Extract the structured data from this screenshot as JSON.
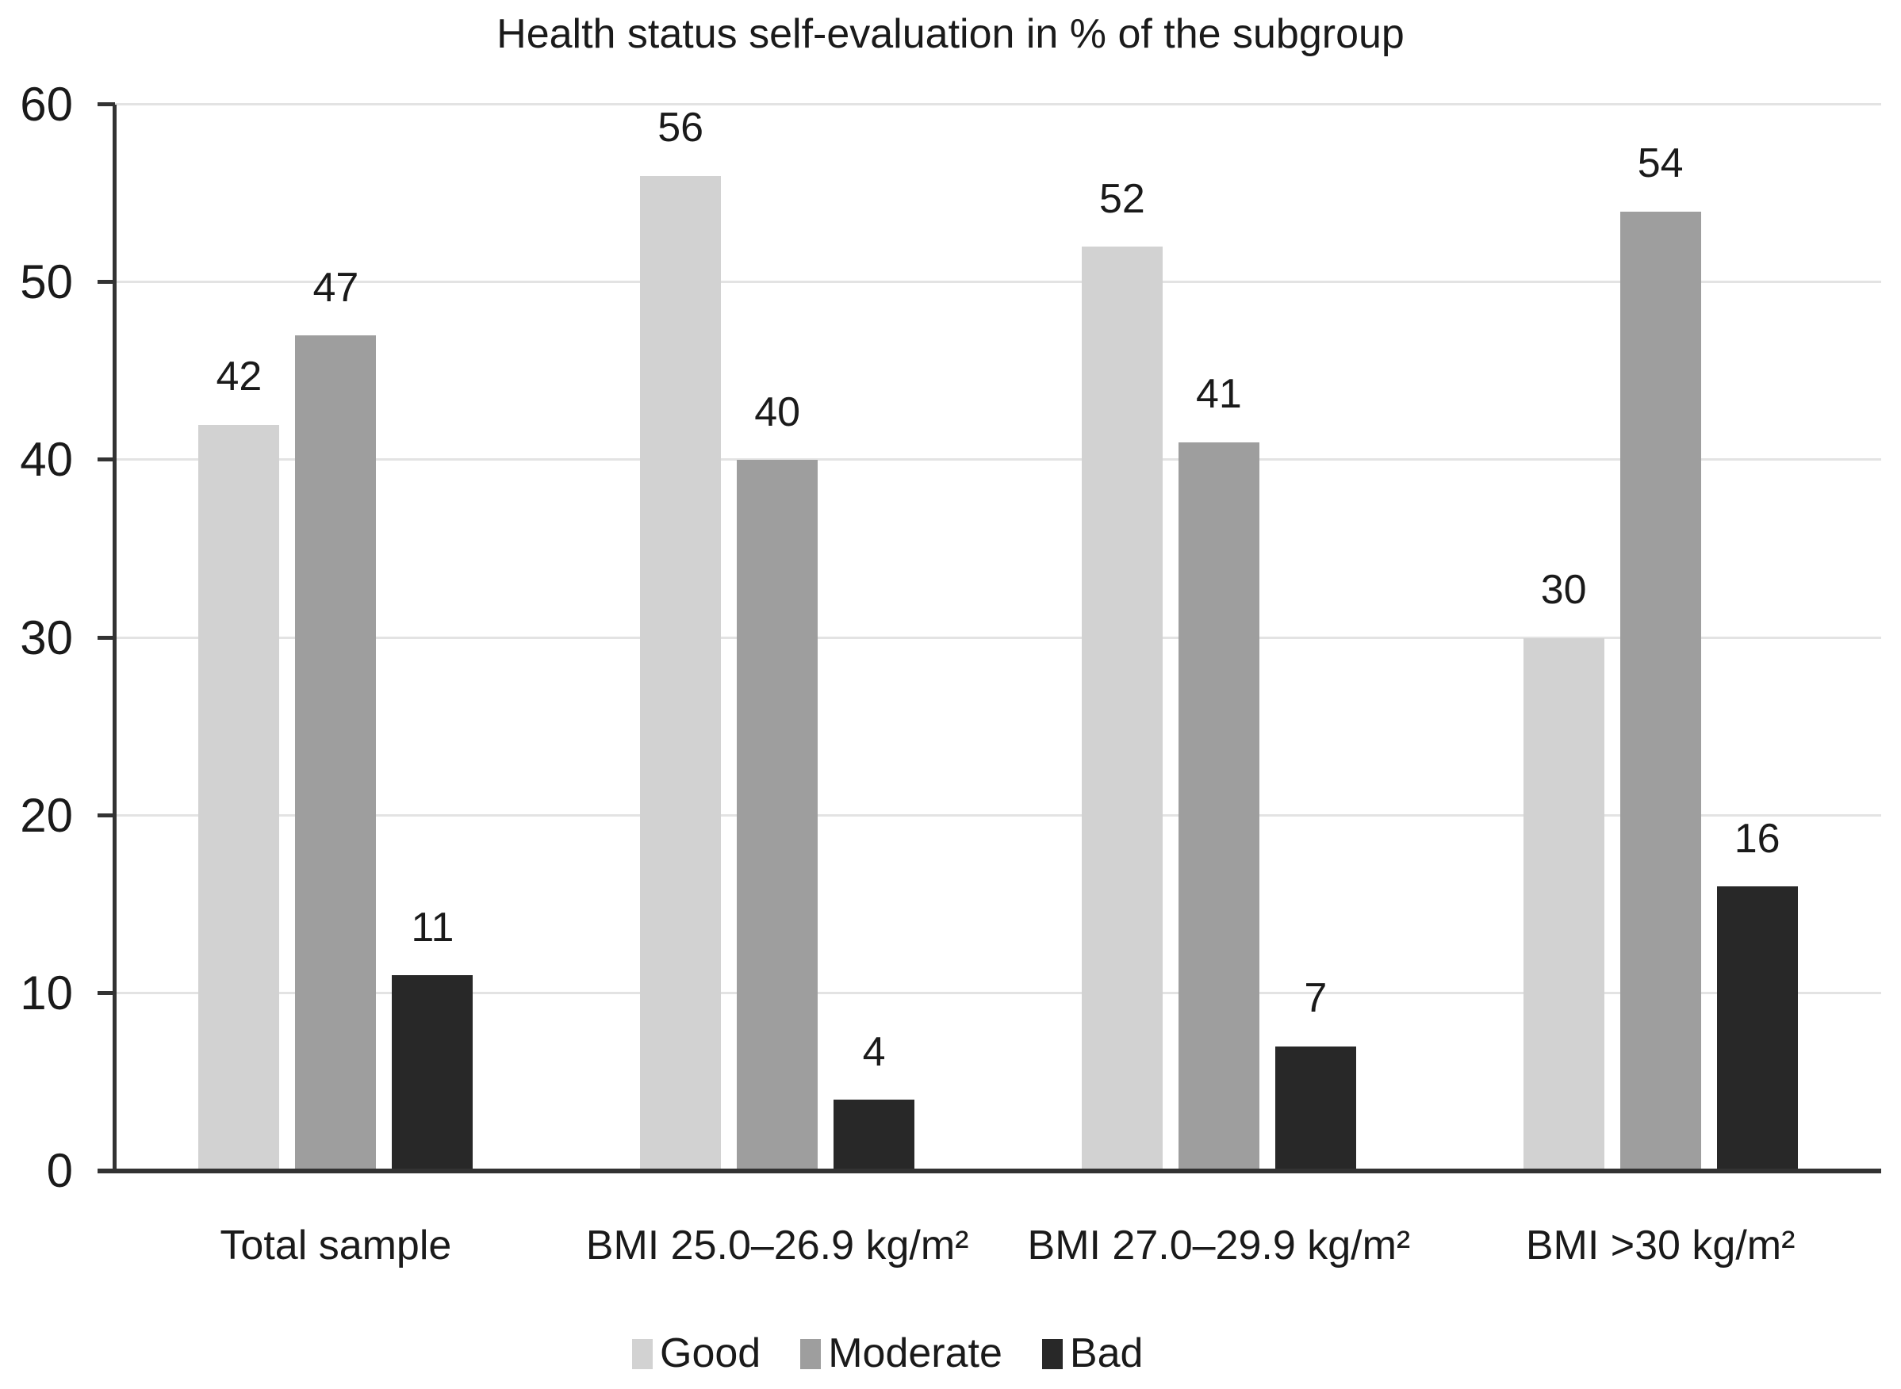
{
  "chart_data": {
    "type": "bar",
    "title": "Health status self-evaluation in % of the subgroup",
    "categories": [
      "Total sample",
      "BMI 25.0–26.9 kg/m²",
      "BMI 27.0–29.9 kg/m²",
      "BMI >30 kg/m²"
    ],
    "series": [
      {
        "name": "Good",
        "color": "#d2d2d2",
        "values": [
          42,
          56,
          52,
          30
        ]
      },
      {
        "name": "Moderate",
        "color": "#9e9e9e",
        "values": [
          47,
          40,
          41,
          54
        ]
      },
      {
        "name": "Bad",
        "color": "#282828",
        "values": [
          11,
          4,
          7,
          16
        ]
      }
    ],
    "xlabel": "",
    "ylabel": "",
    "ylim": [
      0,
      60
    ],
    "yticks": [
      0,
      10,
      20,
      30,
      40,
      50,
      60
    ],
    "grid": true,
    "legend_position": "bottom",
    "colors": {
      "gridline": "#e3e3e3",
      "axis": "#333333",
      "text": "#1a1a1a",
      "background": "#ffffff"
    }
  }
}
